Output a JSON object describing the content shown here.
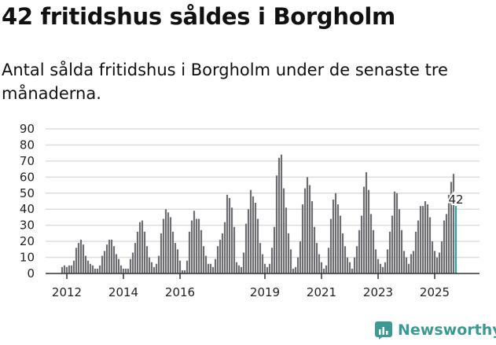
{
  "title": "42 fritidshus såldes i Borgholm",
  "subtitle": "Antal sålda fritidshus i Borgholm under de senaste tre månaderna.",
  "brand": "Newsworthy",
  "colors": {
    "bar": "#6e6d72",
    "highlight": "#2ba3a0",
    "grid": "#dddddd",
    "brand": "#3b9a92"
  },
  "chart_data": {
    "type": "bar",
    "title": "42 fritidshus såldes i Borgholm",
    "xlabel": "",
    "ylabel": "",
    "ylim": [
      0,
      90
    ],
    "yticks": [
      "0",
      "10",
      "20",
      "30",
      "40",
      "50",
      "60",
      "70",
      "80",
      "90"
    ],
    "xticks": [
      "2012",
      "2014",
      "2016",
      "2019",
      "2021",
      "2023",
      "2025"
    ],
    "start_month": "2011-11",
    "frequency": "monthly",
    "values": [
      4,
      5,
      4,
      5,
      5,
      8,
      16,
      19,
      21,
      18,
      11,
      8,
      6,
      5,
      3,
      3,
      5,
      11,
      14,
      18,
      21,
      21,
      17,
      12,
      9,
      5,
      3,
      3,
      3,
      9,
      13,
      19,
      26,
      32,
      33,
      26,
      17,
      10,
      7,
      4,
      6,
      11,
      25,
      34,
      40,
      38,
      35,
      26,
      19,
      15,
      8,
      2,
      2,
      8,
      26,
      33,
      39,
      34,
      34,
      27,
      17,
      11,
      6,
      6,
      4,
      9,
      17,
      21,
      25,
      32,
      49,
      47,
      41,
      29,
      7,
      5,
      4,
      13,
      31,
      40,
      52,
      48,
      44,
      34,
      19,
      12,
      6,
      4,
      6,
      16,
      29,
      61,
      72,
      74,
      53,
      41,
      25,
      15,
      3,
      4,
      10,
      20,
      43,
      53,
      60,
      55,
      45,
      29,
      19,
      12,
      7,
      3,
      5,
      16,
      34,
      46,
      50,
      43,
      36,
      25,
      17,
      10,
      7,
      3,
      10,
      17,
      27,
      36,
      54,
      63,
      52,
      37,
      27,
      15,
      9,
      6,
      4,
      7,
      15,
      26,
      36,
      51,
      50,
      40,
      27,
      14,
      10,
      6,
      12,
      14,
      26,
      33,
      42,
      42,
      45,
      43,
      35,
      20,
      14,
      10,
      13,
      20,
      33,
      37,
      49,
      57,
      62,
      42
    ],
    "annotation": "42"
  }
}
